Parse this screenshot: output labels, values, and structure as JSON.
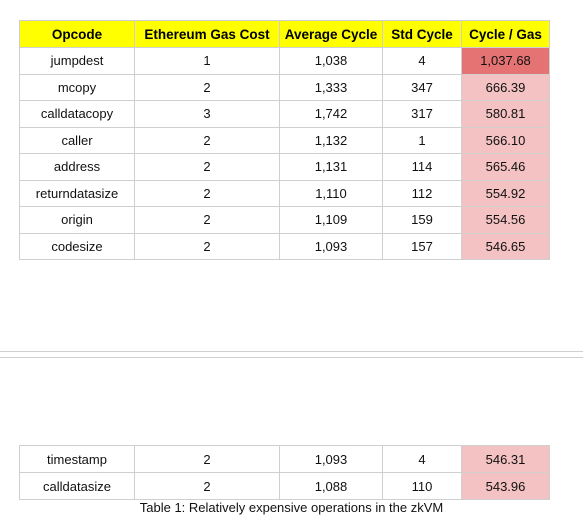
{
  "table": {
    "headers": [
      "Opcode",
      "Ethereum Gas Cost",
      "Average Cycle",
      "Std Cycle",
      "Cycle / Gas"
    ],
    "rows_top": [
      [
        "jumpdest",
        "1",
        "1,038",
        "4",
        "1,037.68"
      ],
      [
        "mcopy",
        "2",
        "1,333",
        "347",
        "666.39"
      ],
      [
        "calldatacopy",
        "3",
        "1,742",
        "317",
        "580.81"
      ],
      [
        "caller",
        "2",
        "1,132",
        "1",
        "566.10"
      ],
      [
        "address",
        "2",
        "1,131",
        "114",
        "565.46"
      ],
      [
        "returndatasize",
        "2",
        "1,110",
        "112",
        "554.92"
      ],
      [
        "origin",
        "2",
        "1,109",
        "159",
        "554.56"
      ],
      [
        "codesize",
        "2",
        "1,093",
        "157",
        "546.65"
      ]
    ],
    "rows_bottom": [
      [
        "timestamp",
        "2",
        "1,093",
        "4",
        "546.31"
      ],
      [
        "calldatasize",
        "2",
        "1,088",
        "110",
        "543.96"
      ]
    ],
    "header_color": "#ffff00",
    "highlight_color": "#e57373",
    "ratio_color": "#f4c2c2"
  },
  "caption": "Table 1: Relatively expensive operations in the zkVM"
}
